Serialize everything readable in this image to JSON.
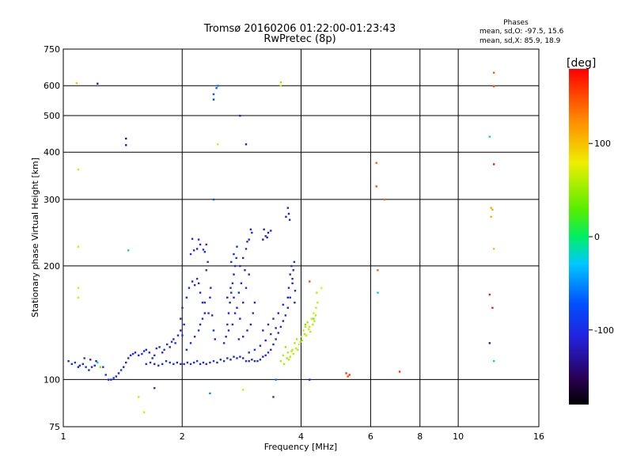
{
  "chart_data": {
    "type": "scatter",
    "title_line1": "Tromsø 20160206 01:22:00-01:23:43",
    "title_line2": "RwPretec (8p)",
    "xlabel": "Frequency [MHz]",
    "ylabel": "Stationary phase Virtual Height [km]",
    "x_scale": "log",
    "y_scale": "log",
    "xlim": [
      1,
      16
    ],
    "ylim": [
      75,
      750
    ],
    "x_ticks": [
      1,
      2,
      4,
      6,
      8,
      10,
      16
    ],
    "x_tick_labels": [
      "1",
      "2",
      "4",
      "6",
      "8",
      "10",
      "16"
    ],
    "y_ticks": [
      75,
      100,
      200,
      300,
      400,
      500,
      600,
      750
    ],
    "y_tick_labels": [
      "75",
      "100",
      "200",
      "300",
      "400",
      "500",
      "600",
      "750"
    ],
    "grid": true,
    "phases_box": {
      "heading": "Phases",
      "line_o": "mean, sd,O: -97.5, 15.6",
      "line_x": "mean, sd,X:  85.9, 18.9"
    },
    "colorbar": {
      "label": "[deg]",
      "range": [
        -180,
        180
      ],
      "ticks": [
        100,
        0,
        -100
      ],
      "tick_labels": [
        "100",
        "0",
        "-100"
      ]
    },
    "points_note": "each point: [frequency MHz, virtual height km, phase deg]",
    "points": [
      [
        1.03,
        112,
        -110
      ],
      [
        1.05,
        110,
        -105
      ],
      [
        1.07,
        111,
        -100
      ],
      [
        1.09,
        108,
        -115
      ],
      [
        1.1,
        109,
        -108
      ],
      [
        1.12,
        110,
        -112
      ],
      [
        1.14,
        108,
        -100
      ],
      [
        1.16,
        106,
        -105
      ],
      [
        1.18,
        108,
        -110
      ],
      [
        1.2,
        109,
        -95
      ],
      [
        1.22,
        111,
        -30
      ],
      [
        1.24,
        108,
        40
      ],
      [
        1.13,
        114,
        -100
      ],
      [
        1.17,
        113,
        -110
      ],
      [
        1.21,
        112,
        -115
      ],
      [
        1.26,
        108,
        -100
      ],
      [
        1.28,
        103,
        -105
      ],
      [
        1.3,
        100,
        -110
      ],
      [
        1.32,
        100,
        -112
      ],
      [
        1.34,
        101,
        -100
      ],
      [
        1.36,
        102,
        -108
      ],
      [
        1.38,
        104,
        -110
      ],
      [
        1.4,
        106,
        -100
      ],
      [
        1.42,
        108,
        -120
      ],
      [
        1.44,
        111,
        -110
      ],
      [
        1.46,
        114,
        -105
      ],
      [
        1.48,
        116,
        -110
      ],
      [
        1.5,
        117,
        -100
      ],
      [
        1.52,
        118,
        -115
      ],
      [
        1.55,
        116,
        -110
      ],
      [
        1.58,
        117,
        -100
      ],
      [
        1.6,
        119,
        -108
      ],
      [
        1.62,
        120,
        -105
      ],
      [
        1.65,
        118,
        -112
      ],
      [
        1.68,
        114,
        -110
      ],
      [
        1.7,
        116,
        -100
      ],
      [
        1.72,
        121,
        -105
      ],
      [
        1.75,
        122,
        -108
      ],
      [
        1.78,
        118,
        -110
      ],
      [
        1.8,
        120,
        -100
      ],
      [
        1.83,
        124,
        -110
      ],
      [
        1.86,
        122,
        -115
      ],
      [
        1.88,
        126,
        -105
      ],
      [
        1.9,
        128,
        -110
      ],
      [
        1.92,
        125,
        -100
      ],
      [
        1.95,
        131,
        -108
      ],
      [
        1.98,
        135,
        -110
      ],
      [
        2.0,
        131,
        -100
      ],
      [
        1.62,
        110,
        -105
      ],
      [
        1.66,
        111,
        -110
      ],
      [
        1.7,
        110,
        -115
      ],
      [
        1.74,
        109,
        -100
      ],
      [
        1.78,
        110,
        -108
      ],
      [
        1.82,
        112,
        -110
      ],
      [
        1.86,
        111,
        -100
      ],
      [
        1.9,
        110,
        -105
      ],
      [
        1.94,
        111,
        -112
      ],
      [
        1.98,
        110,
        -108
      ],
      [
        2.02,
        110,
        -110
      ],
      [
        2.06,
        111,
        -100
      ],
      [
        2.1,
        110,
        -105
      ],
      [
        2.14,
        111,
        -110
      ],
      [
        2.18,
        112,
        -100
      ],
      [
        2.22,
        110,
        -108
      ],
      [
        2.26,
        111,
        -110
      ],
      [
        2.3,
        110,
        -105
      ],
      [
        2.35,
        111,
        -110
      ],
      [
        2.4,
        112,
        -100
      ],
      [
        2.45,
        111,
        -108
      ],
      [
        2.5,
        113,
        -110
      ],
      [
        2.55,
        112,
        -100
      ],
      [
        2.6,
        114,
        -105
      ],
      [
        2.65,
        113,
        -110
      ],
      [
        2.7,
        115,
        -108
      ],
      [
        2.75,
        114,
        -100
      ],
      [
        2.8,
        115,
        -110
      ],
      [
        2.85,
        114,
        -105
      ],
      [
        2.9,
        112,
        -100
      ],
      [
        2.95,
        112,
        -110
      ],
      [
        3.0,
        113,
        -108
      ],
      [
        3.05,
        112,
        -110
      ],
      [
        3.1,
        112,
        -100
      ],
      [
        3.15,
        113,
        -105
      ],
      [
        3.2,
        115,
        -110
      ],
      [
        3.25,
        116,
        -108
      ],
      [
        3.3,
        118,
        -100
      ],
      [
        3.35,
        120,
        -110
      ],
      [
        3.4,
        124,
        -105
      ],
      [
        3.45,
        128,
        -110
      ],
      [
        3.5,
        133,
        -100
      ],
      [
        3.55,
        138,
        -108
      ],
      [
        3.6,
        143,
        -110
      ],
      [
        3.65,
        148,
        -105
      ],
      [
        3.7,
        155,
        -110
      ],
      [
        3.75,
        165,
        -100
      ],
      [
        3.8,
        180,
        -108
      ],
      [
        3.82,
        195,
        -110
      ],
      [
        3.84,
        205,
        -100
      ],
      [
        3.86,
        172,
        -105
      ],
      [
        3.85,
        160,
        -110
      ],
      [
        2.05,
        120,
        -100
      ],
      [
        2.1,
        125,
        -110
      ],
      [
        2.15,
        130,
        -108
      ],
      [
        2.2,
        135,
        -100
      ],
      [
        2.22,
        140,
        -110
      ],
      [
        2.25,
        145,
        -105
      ],
      [
        2.28,
        150,
        -110
      ],
      [
        2.25,
        160,
        -100
      ],
      [
        2.22,
        170,
        -108
      ],
      [
        2.2,
        180,
        -110
      ],
      [
        2.18,
        185,
        -100
      ],
      [
        2.15,
        178,
        -105
      ],
      [
        2.12,
        182,
        -110
      ],
      [
        2.08,
        175,
        -108
      ],
      [
        2.05,
        165,
        -100
      ],
      [
        2.0,
        155,
        -110
      ],
      [
        1.98,
        145,
        -105
      ],
      [
        2.02,
        140,
        -110
      ],
      [
        2.3,
        195,
        -100
      ],
      [
        2.32,
        205,
        -108
      ],
      [
        2.28,
        160,
        -110
      ],
      [
        2.33,
        150,
        -100
      ],
      [
        2.35,
        165,
        -105
      ],
      [
        2.36,
        175,
        -110
      ],
      [
        2.38,
        148,
        -108
      ],
      [
        2.4,
        135,
        -100
      ],
      [
        2.42,
        128,
        -110
      ],
      [
        2.1,
        215,
        -100
      ],
      [
        2.14,
        220,
        -105
      ],
      [
        2.18,
        222,
        -110
      ],
      [
        2.22,
        228,
        -108
      ],
      [
        2.26,
        221,
        -100
      ],
      [
        2.3,
        228,
        -110
      ],
      [
        2.12,
        236,
        -105
      ],
      [
        2.28,
        218,
        -110
      ],
      [
        2.2,
        235,
        -100
      ],
      [
        2.55,
        125,
        -105
      ],
      [
        2.58,
        130,
        -110
      ],
      [
        2.6,
        140,
        -100
      ],
      [
        2.62,
        150,
        -108
      ],
      [
        2.64,
        160,
        -110
      ],
      [
        2.66,
        170,
        -100
      ],
      [
        2.68,
        180,
        -105
      ],
      [
        2.7,
        190,
        -110
      ],
      [
        2.72,
        200,
        -108
      ],
      [
        2.74,
        210,
        -100
      ],
      [
        2.6,
        165,
        -110
      ],
      [
        2.65,
        175,
        -105
      ],
      [
        2.7,
        165,
        -110
      ],
      [
        2.75,
        155,
        -100
      ],
      [
        2.8,
        145,
        -108
      ],
      [
        2.85,
        160,
        -110
      ],
      [
        2.9,
        175,
        -100
      ],
      [
        2.95,
        190,
        -105
      ],
      [
        2.8,
        200,
        -110
      ],
      [
        2.85,
        210,
        -108
      ],
      [
        2.9,
        222,
        -100
      ],
      [
        2.95,
        235,
        -110
      ],
      [
        3.0,
        245,
        -105
      ],
      [
        2.98,
        250,
        -110
      ],
      [
        2.92,
        232,
        -100
      ],
      [
        2.88,
        195,
        -108
      ],
      [
        2.82,
        180,
        -110
      ],
      [
        2.78,
        170,
        -100
      ],
      [
        2.72,
        150,
        -105
      ],
      [
        2.68,
        140,
        -110
      ],
      [
        2.62,
        135,
        -108
      ],
      [
        2.78,
        128,
        -100
      ],
      [
        2.85,
        130,
        -110
      ],
      [
        2.92,
        135,
        -105
      ],
      [
        2.98,
        140,
        -110
      ],
      [
        3.02,
        150,
        -100
      ],
      [
        3.05,
        160,
        -108
      ],
      [
        2.7,
        215,
        -110
      ],
      [
        2.75,
        225,
        -100
      ],
      [
        2.66,
        205,
        -105
      ],
      [
        2.95,
        118,
        -95
      ],
      [
        3.05,
        120,
        -100
      ],
      [
        3.15,
        123,
        -105
      ],
      [
        3.25,
        127,
        -110
      ],
      [
        3.35,
        132,
        -100
      ],
      [
        3.45,
        137,
        -108
      ],
      [
        3.2,
        135,
        -110
      ],
      [
        3.3,
        140,
        -100
      ],
      [
        3.4,
        145,
        -105
      ],
      [
        3.5,
        150,
        -110
      ],
      [
        3.6,
        158,
        -100
      ],
      [
        3.7,
        165,
        -108
      ],
      [
        3.75,
        190,
        -110
      ],
      [
        3.78,
        200,
        -100
      ],
      [
        3.8,
        185,
        -105
      ],
      [
        3.72,
        175,
        -110
      ],
      [
        3.2,
        235,
        -120
      ],
      [
        3.25,
        240,
        -110
      ],
      [
        3.3,
        245,
        -125
      ],
      [
        3.35,
        248,
        -105
      ],
      [
        3.28,
        238,
        -115
      ],
      [
        3.22,
        250,
        -110
      ],
      [
        3.7,
        285,
        -110
      ],
      [
        3.72,
        275,
        -115
      ],
      [
        3.74,
        265,
        -105
      ],
      [
        3.66,
        270,
        -112
      ],
      [
        3.65,
        122,
        50
      ],
      [
        3.7,
        118,
        60
      ],
      [
        3.75,
        115,
        55
      ],
      [
        3.8,
        120,
        65
      ],
      [
        3.85,
        125,
        60
      ],
      [
        3.9,
        128,
        55
      ],
      [
        3.95,
        124,
        70
      ],
      [
        4.0,
        130,
        60
      ],
      [
        4.05,
        135,
        65
      ],
      [
        4.1,
        138,
        60
      ],
      [
        4.15,
        142,
        55
      ],
      [
        4.2,
        138,
        65
      ],
      [
        4.25,
        145,
        60
      ],
      [
        4.3,
        150,
        70
      ],
      [
        3.6,
        116,
        60
      ],
      [
        3.68,
        114,
        55
      ],
      [
        3.78,
        119,
        60
      ],
      [
        3.88,
        121,
        65
      ],
      [
        3.98,
        126,
        60
      ],
      [
        4.08,
        132,
        55
      ],
      [
        4.18,
        136,
        65
      ],
      [
        4.28,
        140,
        60
      ],
      [
        4.35,
        148,
        60
      ],
      [
        4.4,
        160,
        70
      ],
      [
        4.38,
        170,
        65
      ],
      [
        3.55,
        112,
        60
      ],
      [
        3.62,
        110,
        55
      ],
      [
        3.72,
        113,
        60
      ],
      [
        3.82,
        117,
        65
      ],
      [
        3.92,
        120,
        60
      ],
      [
        4.02,
        127,
        55
      ],
      [
        4.12,
        131,
        65
      ],
      [
        4.22,
        134,
        60
      ],
      [
        4.32,
        143,
        60
      ],
      [
        4.36,
        155,
        65
      ],
      [
        1.08,
        610,
        100
      ],
      [
        1.22,
        608,
        -120
      ],
      [
        1.44,
        435,
        -130
      ],
      [
        1.44,
        418,
        -125
      ],
      [
        1.09,
        360,
        70
      ],
      [
        1.09,
        225,
        70
      ],
      [
        1.09,
        175,
        70
      ],
      [
        1.09,
        165,
        70
      ],
      [
        1.46,
        220,
        -10
      ],
      [
        1.55,
        90,
        70
      ],
      [
        1.6,
        82,
        70
      ],
      [
        1.7,
        95,
        -100
      ],
      [
        2.46,
        600,
        -60
      ],
      [
        2.44,
        592,
        -65
      ],
      [
        2.4,
        552,
        -90
      ],
      [
        2.4,
        570,
        -70
      ],
      [
        2.46,
        420,
        70
      ],
      [
        2.4,
        300,
        -70
      ],
      [
        2.35,
        92,
        -50
      ],
      [
        2.8,
        500,
        -110
      ],
      [
        2.9,
        420,
        -120
      ],
      [
        2.85,
        94,
        70
      ],
      [
        3.55,
        600,
        70
      ],
      [
        3.55,
        613,
        50
      ],
      [
        3.4,
        90,
        -100
      ],
      [
        3.45,
        100,
        -60
      ],
      [
        4.2,
        100,
        -110
      ],
      [
        4.3,
        145,
        40
      ],
      [
        4.1,
        140,
        40
      ],
      [
        4.5,
        175,
        80
      ],
      [
        4.2,
        182,
        150
      ],
      [
        5.2,
        104,
        160
      ],
      [
        5.25,
        102,
        150
      ],
      [
        5.3,
        103,
        160
      ],
      [
        6.2,
        375,
        140
      ],
      [
        6.2,
        325,
        150
      ],
      [
        6.25,
        195,
        140
      ],
      [
        6.25,
        170,
        -20
      ],
      [
        6.5,
        300,
        140
      ],
      [
        7.1,
        105,
        160
      ],
      [
        12.0,
        440,
        -20
      ],
      [
        12.3,
        650,
        140
      ],
      [
        12.3,
        598,
        150
      ],
      [
        12.3,
        372,
        170
      ],
      [
        12.2,
        282,
        110
      ],
      [
        12.1,
        285,
        110
      ],
      [
        12.1,
        270,
        110
      ],
      [
        12.3,
        222,
        100
      ],
      [
        12.0,
        168,
        170
      ],
      [
        12.2,
        155,
        170
      ],
      [
        12.0,
        125,
        -120
      ],
      [
        12.3,
        112,
        -10
      ]
    ]
  }
}
